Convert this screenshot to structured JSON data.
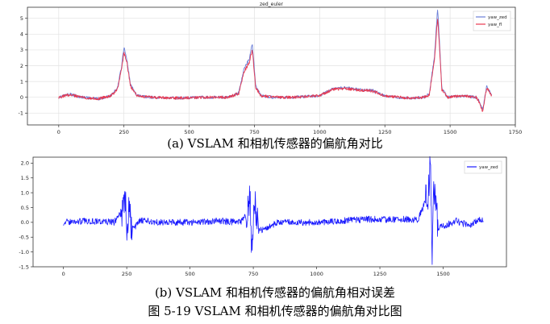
{
  "captions": {
    "a": "(a) VSLAM 和相机传感器的偏航角对比",
    "b": "(b) VSLAM 和相机传感器的偏航角相对误差",
    "figure": "图 5-19 VSLAM 和相机传感器的偏航角对比图"
  },
  "chart_data": [
    {
      "type": "line",
      "title": "zed_euler",
      "xlabel": "",
      "ylabel": "",
      "xlim": [
        -120,
        1750
      ],
      "ylim": [
        -1.75,
        5.7
      ],
      "xticks": [
        0,
        250,
        500,
        750,
        1000,
        1250,
        1500,
        1750
      ],
      "yticks": [
        -1,
        0,
        1,
        2,
        3,
        4,
        5
      ],
      "grid": true,
      "legend": "top-right",
      "series": [
        {
          "name": "yaw_zed",
          "color": "#6b7fd7",
          "x": [
            0,
            40,
            90,
            150,
            200,
            225,
            240,
            250,
            260,
            275,
            300,
            350,
            450,
            550,
            650,
            690,
            710,
            730,
            742,
            755,
            775,
            820,
            900,
            1000,
            1050,
            1100,
            1150,
            1200,
            1250,
            1300,
            1350,
            1400,
            1420,
            1440,
            1452,
            1458,
            1468,
            1490,
            1550,
            1600,
            1610,
            1625,
            1640,
            1660
          ],
          "values": [
            0.0,
            0.2,
            0.0,
            -0.1,
            0.1,
            0.6,
            1.9,
            3.2,
            2.5,
            0.8,
            0.1,
            0.0,
            -0.05,
            0.0,
            0.0,
            0.3,
            1.8,
            2.4,
            3.4,
            0.7,
            0.1,
            0.0,
            0.0,
            0.1,
            0.55,
            0.6,
            0.5,
            0.45,
            0.1,
            0.0,
            -0.05,
            0.0,
            0.2,
            2.6,
            5.6,
            4.0,
            0.6,
            0.0,
            0.1,
            0.0,
            -0.2,
            -0.8,
            0.7,
            0.1
          ]
        },
        {
          "name": "yaw_fl",
          "color": "#e8384f",
          "x": [
            0,
            40,
            90,
            150,
            200,
            225,
            240,
            250,
            260,
            275,
            300,
            350,
            450,
            550,
            650,
            690,
            710,
            730,
            742,
            755,
            775,
            820,
            900,
            1000,
            1050,
            1100,
            1150,
            1200,
            1250,
            1300,
            1350,
            1400,
            1420,
            1440,
            1452,
            1458,
            1468,
            1490,
            1550,
            1600,
            1610,
            1625,
            1640,
            1660
          ],
          "values": [
            0.0,
            0.15,
            0.0,
            -0.1,
            0.1,
            0.5,
            1.7,
            2.8,
            2.3,
            0.7,
            0.1,
            0.0,
            -0.05,
            0.0,
            0.0,
            0.25,
            1.6,
            2.2,
            3.0,
            0.6,
            0.1,
            0.0,
            0.0,
            0.1,
            0.5,
            0.55,
            0.45,
            0.4,
            0.1,
            0.0,
            -0.05,
            0.0,
            0.15,
            2.3,
            5.0,
            3.6,
            0.5,
            0.0,
            0.1,
            0.0,
            -0.25,
            -0.9,
            0.6,
            0.1
          ]
        }
      ]
    },
    {
      "type": "line",
      "title": "",
      "xlabel": "",
      "ylabel": "",
      "xlim": [
        -120,
        1750
      ],
      "ylim": [
        -1.5,
        2.2
      ],
      "xticks": [
        0,
        250,
        500,
        750,
        1000,
        1250,
        1500
      ],
      "yticks": [
        -1.5,
        -1.0,
        -0.5,
        0.0,
        0.5,
        1.0,
        1.5,
        2.0
      ],
      "grid": false,
      "legend": "top-right",
      "series": [
        {
          "name": "yaw_zed",
          "color": "#1a1aff",
          "x": [
            0,
            100,
            200,
            235,
            245,
            250,
            258,
            270,
            300,
            400,
            500,
            600,
            700,
            725,
            738,
            745,
            752,
            770,
            850,
            1000,
            1100,
            1200,
            1300,
            1400,
            1440,
            1450,
            1456,
            1462,
            1480,
            1550,
            1600,
            1650,
            1660
          ],
          "values": [
            0.0,
            0.05,
            0.0,
            0.4,
            0.9,
            -0.8,
            0.6,
            -0.3,
            0.05,
            0.0,
            0.0,
            0.05,
            0.0,
            0.3,
            0.8,
            -1.2,
            1.0,
            -0.3,
            0.0,
            0.0,
            0.05,
            0.1,
            0.1,
            0.1,
            0.9,
            2.1,
            -1.3,
            1.4,
            -0.2,
            0.05,
            -0.1,
            0.1,
            0.0
          ]
        }
      ]
    }
  ]
}
